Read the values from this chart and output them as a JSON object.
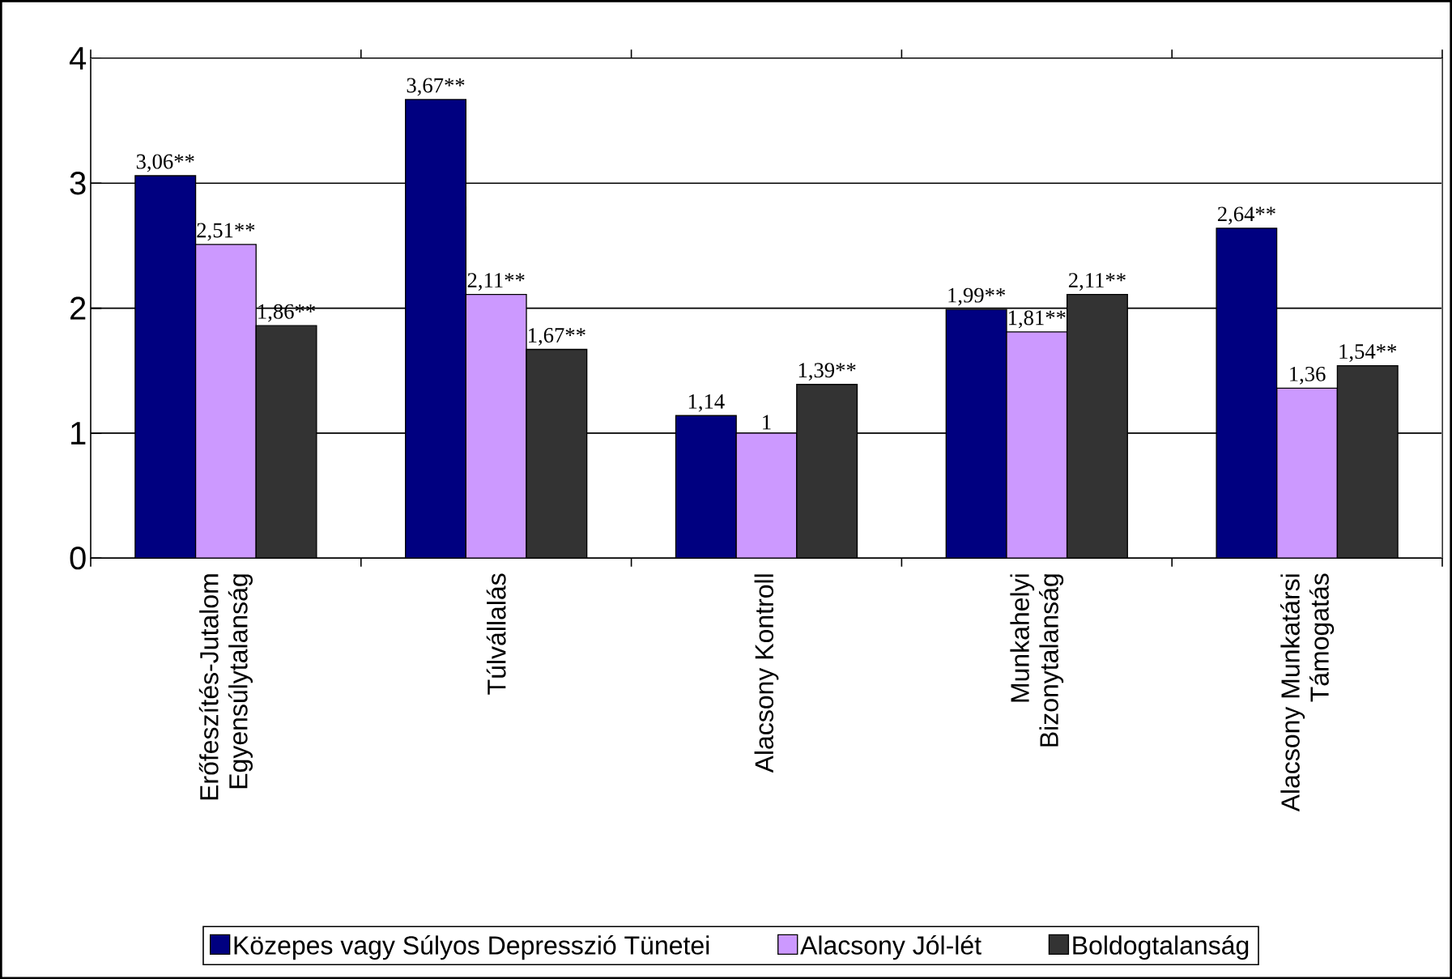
{
  "chart_data": {
    "type": "bar",
    "categories": [
      "Erőfeszítés-Jutalom Egyensúlytalanság",
      "Túlvállalás",
      "Alacsony Kontroll",
      "Munkahelyi Bizonytalanság",
      "Alacsony Munkatársi Támogatás"
    ],
    "series": [
      {
        "name": "Közepes vagy Súlyos Depresszió Tünetei",
        "color": "#000080",
        "values": [
          3.06,
          3.67,
          1.14,
          1.99,
          2.64
        ],
        "value_labels": [
          "3,06**",
          "3,67**",
          "1,14",
          "1,99**",
          "2,64**"
        ]
      },
      {
        "name": "Alacsony Jól-lét",
        "color": "#cc99ff",
        "values": [
          2.51,
          2.11,
          1,
          1.81,
          1.36
        ],
        "value_labels": [
          "2,51**",
          "2,11**",
          "1",
          "1,81**",
          "1,36"
        ]
      },
      {
        "name": "Boldogtalanság",
        "color": "#333333",
        "values": [
          1.86,
          1.67,
          1.39,
          2.11,
          1.54
        ],
        "value_labels": [
          "1,86**",
          "1,67**",
          "1,39**",
          "2,11**",
          "1,54**"
        ]
      }
    ],
    "ylim": [
      0,
      4
    ],
    "yticks": [
      0,
      1,
      2,
      3,
      4
    ],
    "grid": "y",
    "legend": "bottom"
  }
}
